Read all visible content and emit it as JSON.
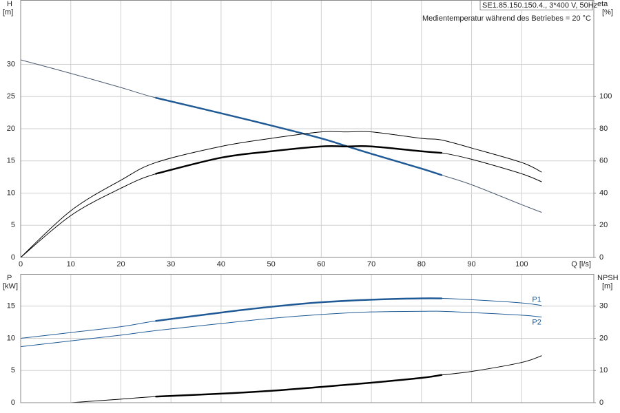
{
  "chart_data": [
    {
      "type": "line",
      "title": "SE1.85.150.150.4., 3*400 V, 50Hz",
      "annotation": "Medientemperatur während des Betriebes = 20 °C",
      "ylabel": "H",
      "yunit": "[m]",
      "y2label": "eta",
      "y2unit": "[%]",
      "xlabel": "Q [l/s]",
      "x": [
        0,
        10,
        20,
        27,
        40,
        50,
        60,
        65,
        70,
        80,
        84,
        90,
        100,
        104
      ],
      "xlim": [
        0,
        114.4
      ],
      "xticks": [
        0,
        10,
        20,
        30,
        40,
        50,
        60,
        70,
        80,
        90,
        100
      ],
      "xtick_labels": true,
      "ylim": [
        0,
        40
      ],
      "yticks": [
        0,
        5,
        10,
        15,
        20,
        25,
        30
      ],
      "y2lim": [
        0,
        160
      ],
      "y2ticks": [
        0,
        20,
        40,
        60,
        80,
        100
      ],
      "grid": true,
      "operating_range": [
        27,
        84
      ],
      "series": [
        {
          "color": "#1f5a96",
          "thin_color": "#4a5a70",
          "emphasis": true,
          "axis": "y",
          "values": [
            30.7,
            28.6,
            26.4,
            24.8,
            22.4,
            20.5,
            18.5,
            17.3,
            16.1,
            13.8,
            12.8,
            11.3,
            8.2,
            7.0
          ]
        },
        {
          "color": "#000000",
          "thin_color": "#000000",
          "emphasis": false,
          "axis": "y2",
          "values": [
            0,
            29,
            48,
            59,
            69,
            74,
            78,
            78,
            78,
            74,
            73,
            68,
            59,
            53
          ]
        },
        {
          "color": "#000000",
          "thin_color": "#000000",
          "emphasis": true,
          "axis": "y2",
          "values": [
            0,
            26,
            43,
            52,
            62,
            66,
            69,
            69,
            69,
            66,
            65,
            61,
            52,
            47
          ]
        }
      ]
    },
    {
      "type": "line",
      "ylabel": "P",
      "yunit": "[kW]",
      "y2label": "NPSH",
      "y2unit": "[m]",
      "x": [
        0,
        10,
        20,
        27,
        40,
        50,
        60,
        70,
        80,
        84,
        90,
        100,
        104
      ],
      "xlim": [
        0,
        114.4
      ],
      "xticks": [
        0,
        10,
        20,
        30,
        40,
        50,
        60,
        70,
        80,
        90,
        100
      ],
      "xtick_labels": false,
      "ylim": [
        0,
        20
      ],
      "yticks": [
        0,
        5,
        10,
        15
      ],
      "y2lim": [
        0,
        40
      ],
      "y2ticks": [
        0,
        10,
        20,
        30
      ],
      "grid": true,
      "operating_range": [
        27,
        84
      ],
      "series": [
        {
          "name": "P1",
          "name_side": "above",
          "color": "#1f5a96",
          "thin_color": "#1f5a96",
          "emphasis": true,
          "axis": "y",
          "values": [
            10.0,
            10.9,
            11.8,
            12.7,
            14.0,
            14.9,
            15.6,
            16.0,
            16.2,
            16.2,
            16.0,
            15.5,
            15.1
          ]
        },
        {
          "name": "P2",
          "name_side": "below",
          "color": "#1f5a96",
          "thin_color": "#1f5a96",
          "emphasis": false,
          "axis": "y",
          "values": [
            8.7,
            9.6,
            10.5,
            11.2,
            12.3,
            13.1,
            13.7,
            14.1,
            14.2,
            14.2,
            14.0,
            13.6,
            13.3
          ]
        },
        {
          "color": "#000000",
          "thin_color": "#000000",
          "emphasis": true,
          "axis": "y2",
          "values": [
            null,
            0,
            1.1,
            1.9,
            2.8,
            3.7,
            4.9,
            6.2,
            7.7,
            8.6,
            9.7,
            12.5,
            14.6
          ]
        }
      ]
    }
  ]
}
